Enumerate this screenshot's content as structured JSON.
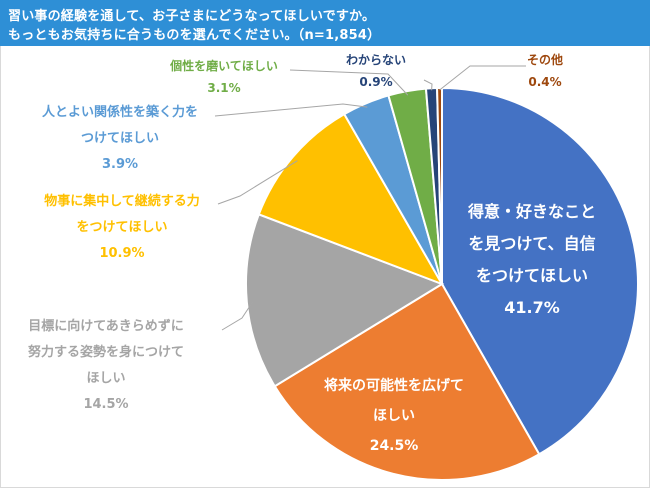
{
  "header": {
    "line1": "習い事の経験を通して、お子さまにどうなってほしいですか。",
    "line2": "もっともお気持ちに合うものを選んでください。（n=1,854）",
    "bg_color": "#2e8fd6"
  },
  "chart_data": {
    "type": "pie",
    "title": "",
    "slices": [
      {
        "label_lines": [
          "得意・好きなこと",
          "を見つけて、自信",
          "をつけてほしい"
        ],
        "value": 41.7,
        "value_label": "41.7%",
        "color": "#4472c4",
        "label_color": "#ffffff"
      },
      {
        "label_lines": [
          "将来の可能性を広げて",
          "ほしい"
        ],
        "value": 24.5,
        "value_label": "24.5%",
        "color": "#ed7d31",
        "label_color": "#ffffff"
      },
      {
        "label_lines": [
          "目標に向けてあきらめずに",
          "努力する姿勢を身につけて",
          "ほしい"
        ],
        "value": 14.5,
        "value_label": "14.5%",
        "color": "#a5a5a5",
        "label_color": "#a5a5a5"
      },
      {
        "label_lines": [
          "物事に集中して継続する力",
          "をつけてほしい"
        ],
        "value": 10.9,
        "value_label": "10.9%",
        "color": "#ffc000",
        "label_color": "#ffc000"
      },
      {
        "label_lines": [
          "人とよい関係性を築く力を",
          "つけてほしい"
        ],
        "value": 3.9,
        "value_label": "3.9%",
        "color": "#5b9bd5",
        "label_color": "#5b9bd5"
      },
      {
        "label_lines": [
          "個性を磨いてほしい"
        ],
        "value": 3.1,
        "value_label": "3.1%",
        "color": "#70ad47",
        "label_color": "#70ad47"
      },
      {
        "label_lines": [
          "わからない"
        ],
        "value": 0.9,
        "value_label": "0.9%",
        "color": "#264478",
        "label_color": "#264478"
      },
      {
        "label_lines": [
          "その他"
        ],
        "value": 0.4,
        "value_label": "0.4%",
        "color": "#9e480e",
        "label_color": "#9e480e"
      }
    ],
    "legend": "none",
    "start": "12 o'clock, clockwise"
  }
}
